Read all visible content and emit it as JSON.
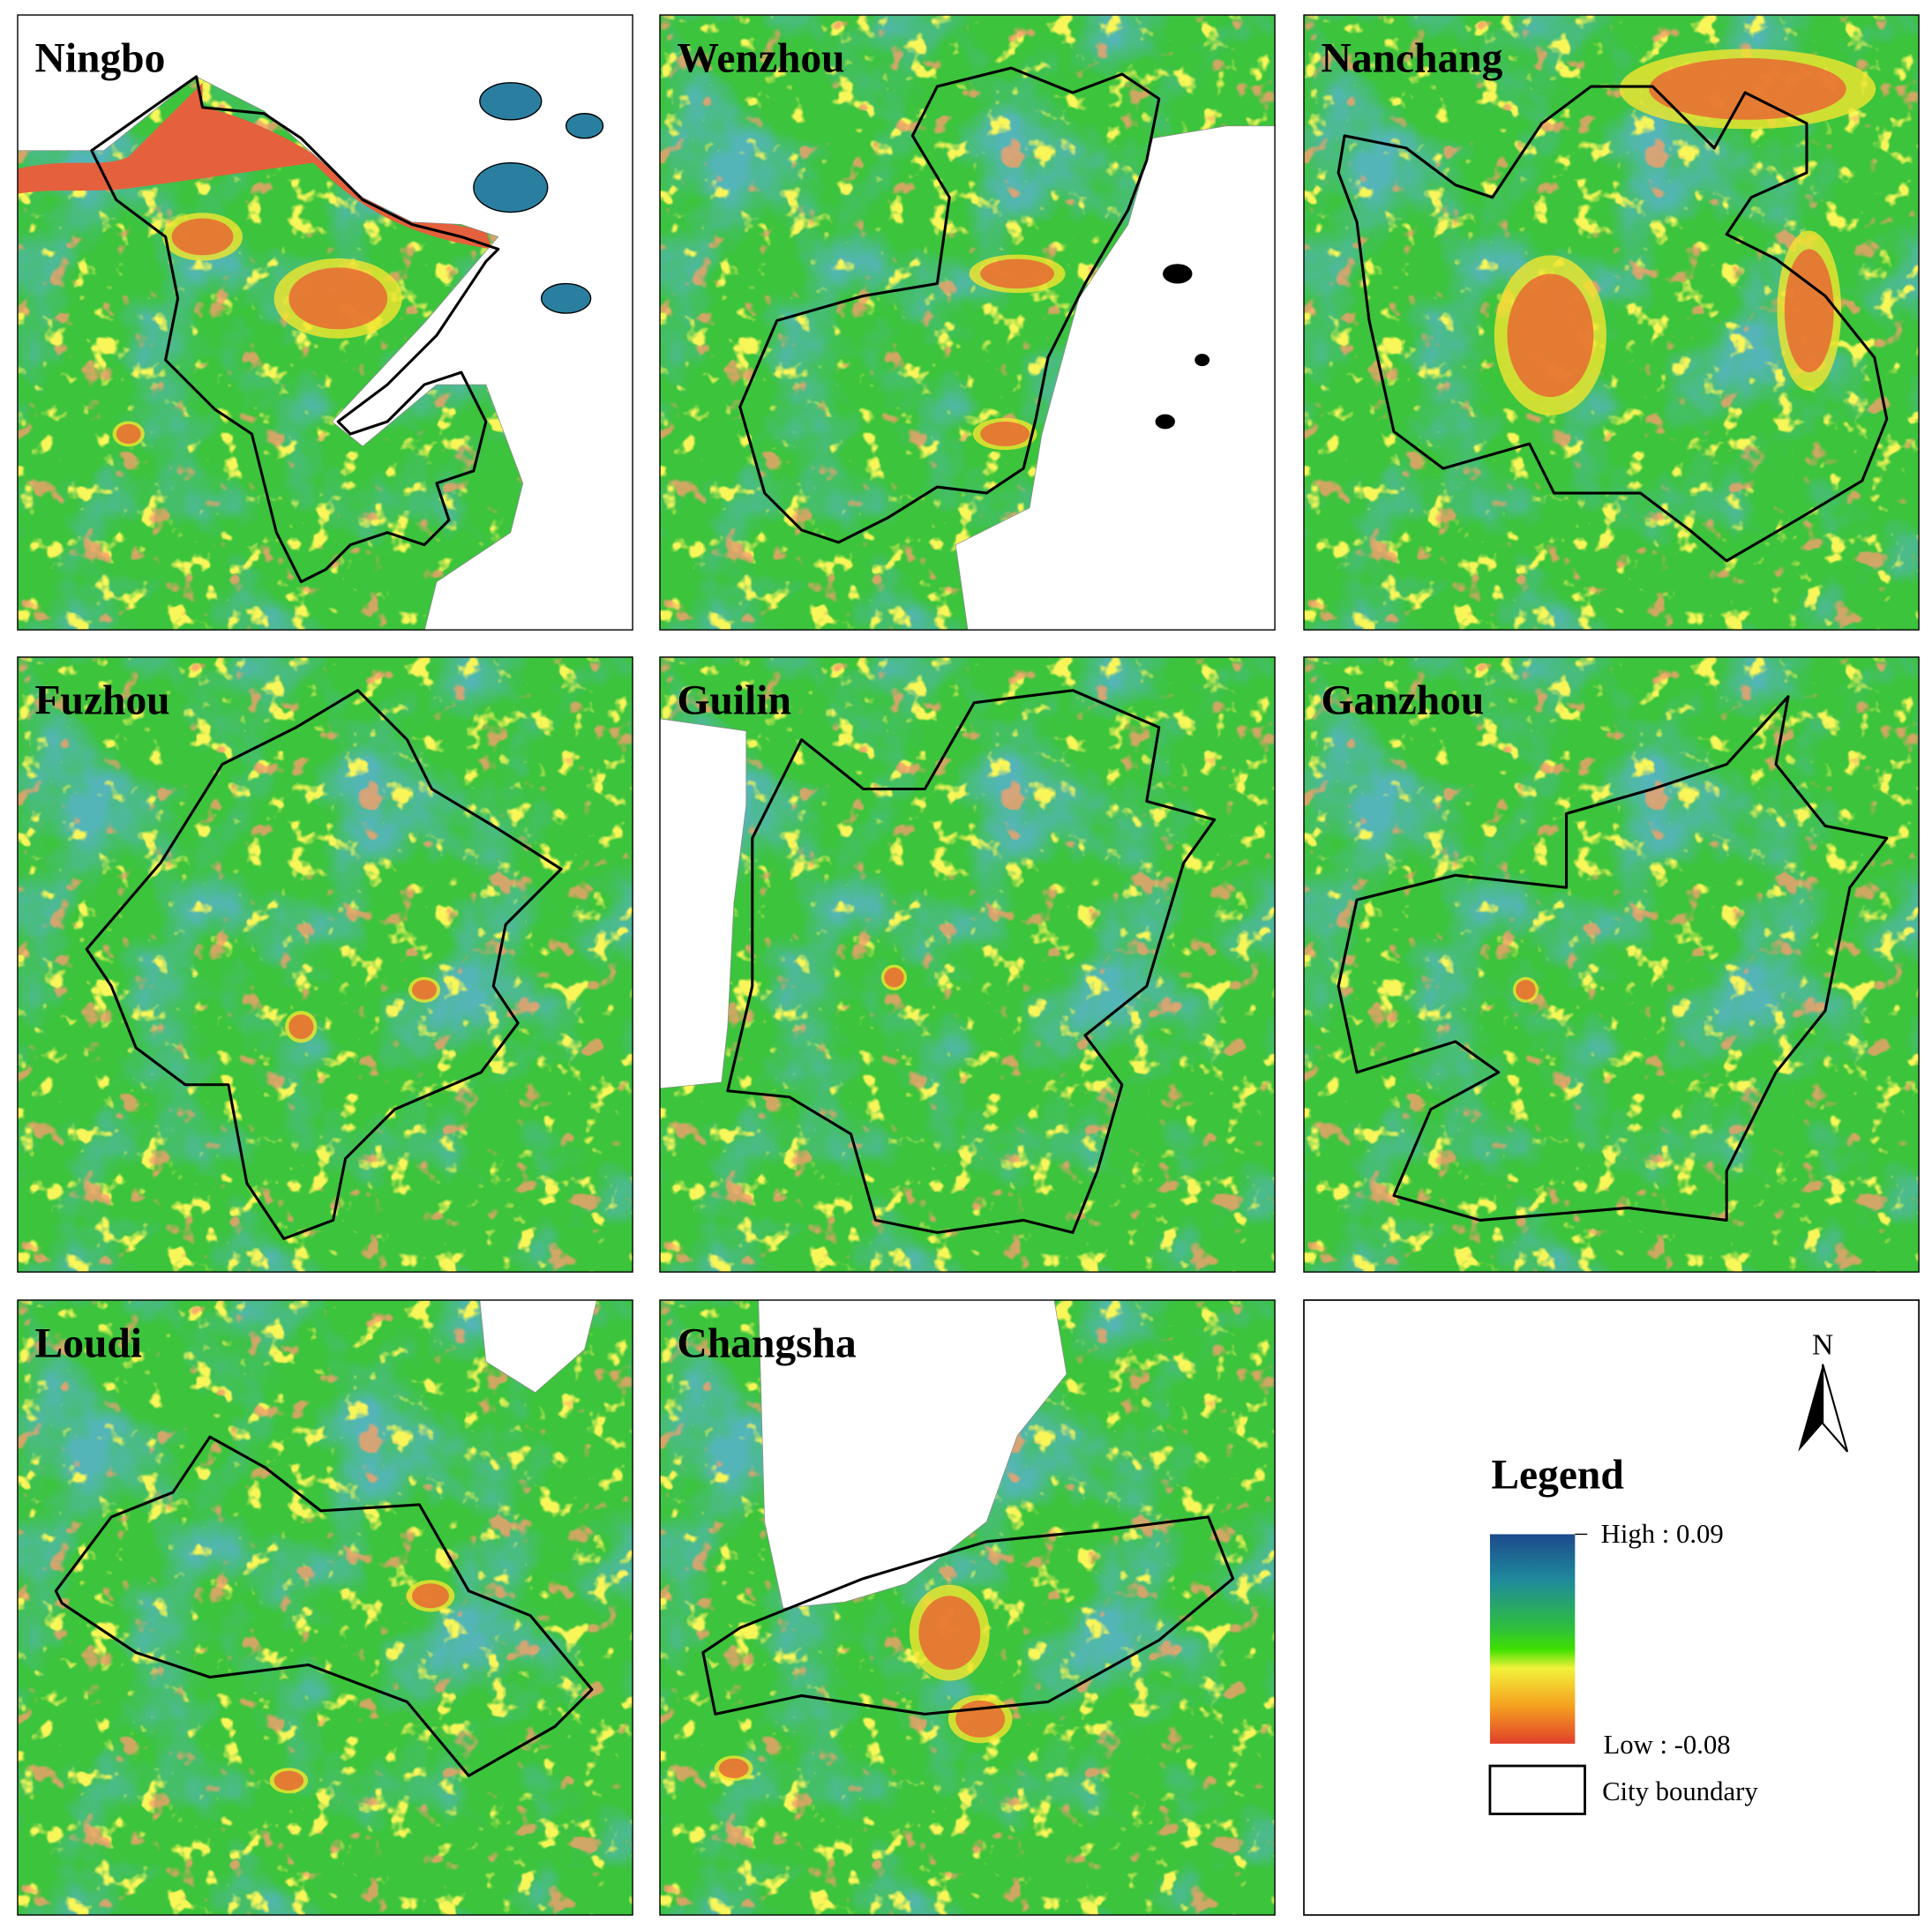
{
  "panels": [
    {
      "title": "Ningbo"
    },
    {
      "title": "Wenzhou"
    },
    {
      "title": "Nanchang"
    },
    {
      "title": "Fuzhou"
    },
    {
      "title": "Guilin"
    },
    {
      "title": "Ganzhou"
    },
    {
      "title": "Loudi"
    },
    {
      "title": "Changsha"
    }
  ],
  "legend": {
    "north": "N",
    "title": "Legend",
    "high": "High : 0.09",
    "low": "Low : -0.08",
    "boundary": "City boundary"
  }
}
